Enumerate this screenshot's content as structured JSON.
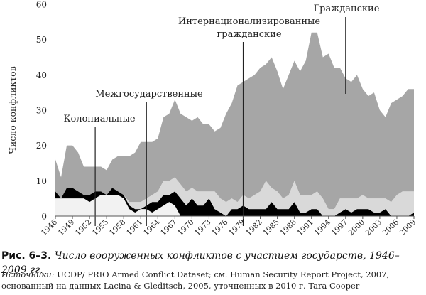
{
  "chart_data": {
    "type": "area",
    "stacked": true,
    "ylabel": "Число конфликтов",
    "xlabel": "",
    "ylim": [
      0,
      60
    ],
    "yticks": [
      0,
      10,
      20,
      30,
      40,
      50,
      60
    ],
    "xtick_labels": [
      "1946",
      "1949",
      "1952",
      "1955",
      "1958",
      "1961",
      "1964",
      "1967",
      "1970",
      "1973",
      "1976",
      "1979",
      "1982",
      "1985",
      "1988",
      "1991",
      "1994",
      "1997",
      "2000",
      "2003",
      "2006",
      "2009"
    ],
    "years": [
      1946,
      1947,
      1948,
      1949,
      1950,
      1951,
      1952,
      1953,
      1954,
      1955,
      1956,
      1957,
      1958,
      1959,
      1960,
      1961,
      1962,
      1963,
      1964,
      1965,
      1966,
      1967,
      1968,
      1969,
      1970,
      1971,
      1972,
      1973,
      1974,
      1975,
      1976,
      1977,
      1978,
      1979,
      1980,
      1981,
      1982,
      1983,
      1984,
      1985,
      1986,
      1987,
      1988,
      1989,
      1990,
      1991,
      1992,
      1993,
      1994,
      1995,
      1996,
      1997,
      1998,
      1999,
      2000,
      2001,
      2002,
      2003,
      2004,
      2005,
      2006,
      2007,
      2008,
      2009
    ],
    "series": [
      {
        "name": "Колониальные",
        "color": "#f2f2f2",
        "values": [
          5,
          5,
          5,
          5,
          5,
          5,
          4,
          5,
          6,
          6,
          6,
          6,
          5,
          2,
          1,
          2,
          2,
          1,
          2,
          3,
          4,
          3,
          0,
          0,
          0,
          0,
          0,
          0,
          0,
          0,
          0,
          0,
          0,
          0,
          0,
          0,
          0,
          0,
          0,
          0,
          0,
          0,
          0,
          0,
          0,
          0,
          0,
          0,
          0,
          0,
          0,
          0,
          0,
          0,
          0,
          0,
          0,
          0,
          0,
          0,
          0,
          0,
          0,
          0
        ]
      },
      {
        "name": "Межгосударственные",
        "color": "#000000",
        "values": [
          2,
          0,
          3,
          3,
          2,
          1,
          2,
          2,
          1,
          0,
          2,
          1,
          1,
          1,
          1,
          0,
          1,
          3,
          2,
          3,
          2,
          4,
          5,
          3,
          5,
          3,
          3,
          5,
          2,
          1,
          0,
          2,
          2,
          3,
          2,
          2,
          2,
          2,
          4,
          2,
          2,
          2,
          4,
          1,
          1,
          2,
          2,
          0,
          0,
          0,
          1,
          2,
          1,
          2,
          2,
          2,
          1,
          1,
          2,
          0,
          0,
          0,
          0,
          1
        ]
      },
      {
        "name": "Интернационализированные гражданские",
        "color": "#d9d9d9",
        "values": [
          0,
          0,
          0,
          0,
          0,
          0,
          0,
          0,
          0,
          0,
          0,
          0,
          0,
          1,
          2,
          2,
          2,
          2,
          3,
          4,
          4,
          4,
          4,
          4,
          3,
          4,
          4,
          2,
          5,
          4,
          4,
          3,
          2,
          3,
          3,
          4,
          5,
          8,
          4,
          5,
          3,
          4,
          6,
          5,
          5,
          4,
          5,
          5,
          2,
          2,
          4,
          3,
          4,
          3,
          4,
          3,
          4,
          4,
          3,
          4,
          6,
          7,
          7,
          6
        ]
      },
      {
        "name": "Гражданские",
        "color": "#a6a6a6",
        "values": [
          9,
          6,
          12,
          12,
          11,
          8,
          8,
          7,
          7,
          7,
          8,
          10,
          11,
          13,
          14,
          17,
          16,
          15,
          15,
          18,
          19,
          22,
          20,
          21,
          19,
          21,
          19,
          19,
          17,
          20,
          25,
          27,
          33,
          32,
          34,
          34,
          35,
          33,
          37,
          34,
          31,
          34,
          34,
          35,
          38,
          46,
          45,
          40,
          44,
          40,
          37,
          34,
          33,
          35,
          30,
          29,
          30,
          25,
          23,
          28,
          27,
          27,
          29,
          29
        ]
      }
    ],
    "annotations": [
      {
        "text": "Колониальные",
        "year": 1953
      },
      {
        "text": "Межгосударственные",
        "year": 1962
      },
      {
        "text": "Интернационализированные",
        "text2": "гражданские",
        "year": 1979
      },
      {
        "text": "Гражданские",
        "year": 1997
      }
    ]
  },
  "caption": {
    "label": "Рис. 6–3.",
    "text": "Число вооруженных конфликтов с участием государств, 1946–2009 гг."
  },
  "sources": {
    "label": "Источники:",
    "text": "UCDP/ PRIO Armed Conflict Dataset; см. Human Security Report Project, 2007, основанный на данных Lacina & Gleditsch, 2005, уточненных в 2010 г. Tara Cooper"
  }
}
